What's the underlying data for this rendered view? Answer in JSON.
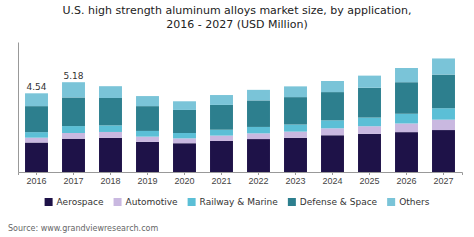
{
  "chart_data": {
    "type": "bar",
    "stacked": true,
    "title": "U.S. high strength aluminum alloys market size, by application,\n2016 - 2027 (USD Million)",
    "source": "Source: www.grandviewresearch.com",
    "categories": [
      "2016",
      "2017",
      "2018",
      "2019",
      "2020",
      "2021",
      "2022",
      "2023",
      "2024",
      "2025",
      "2026",
      "2027"
    ],
    "series": [
      {
        "name": "Aerospace",
        "color": "#1e1248",
        "values": [
          1.7,
          1.92,
          1.97,
          1.74,
          1.66,
          1.79,
          1.9,
          1.97,
          2.12,
          2.2,
          2.3,
          2.42
        ]
      },
      {
        "name": "Automotive",
        "color": "#c9b8e0",
        "values": [
          0.28,
          0.33,
          0.34,
          0.3,
          0.28,
          0.31,
          0.33,
          0.36,
          0.4,
          0.44,
          0.5,
          0.6
        ]
      },
      {
        "name": "Railway & Marine",
        "color": "#5bbfd6",
        "values": [
          0.32,
          0.4,
          0.38,
          0.33,
          0.31,
          0.34,
          0.37,
          0.41,
          0.46,
          0.5,
          0.56,
          0.66
        ]
      },
      {
        "name": "Defense & Space",
        "color": "#2d7f8e",
        "values": [
          1.5,
          1.65,
          1.58,
          1.43,
          1.33,
          1.43,
          1.53,
          1.58,
          1.63,
          1.72,
          1.82,
          1.94
        ]
      },
      {
        "name": "Others",
        "color": "#7ac4d8",
        "values": [
          0.74,
          0.88,
          0.68,
          0.58,
          0.5,
          0.57,
          0.61,
          0.62,
          0.64,
          0.7,
          0.82,
          0.93
        ]
      }
    ],
    "annotations": [
      {
        "text": "4.54",
        "x": "2016",
        "y": 4.54
      },
      {
        "text": "5.18",
        "x": "2017",
        "y": 5.18
      }
    ],
    "ylim": [
      0,
      7.5
    ],
    "tick_labels": "x",
    "grid": false,
    "legend": "bottom"
  }
}
